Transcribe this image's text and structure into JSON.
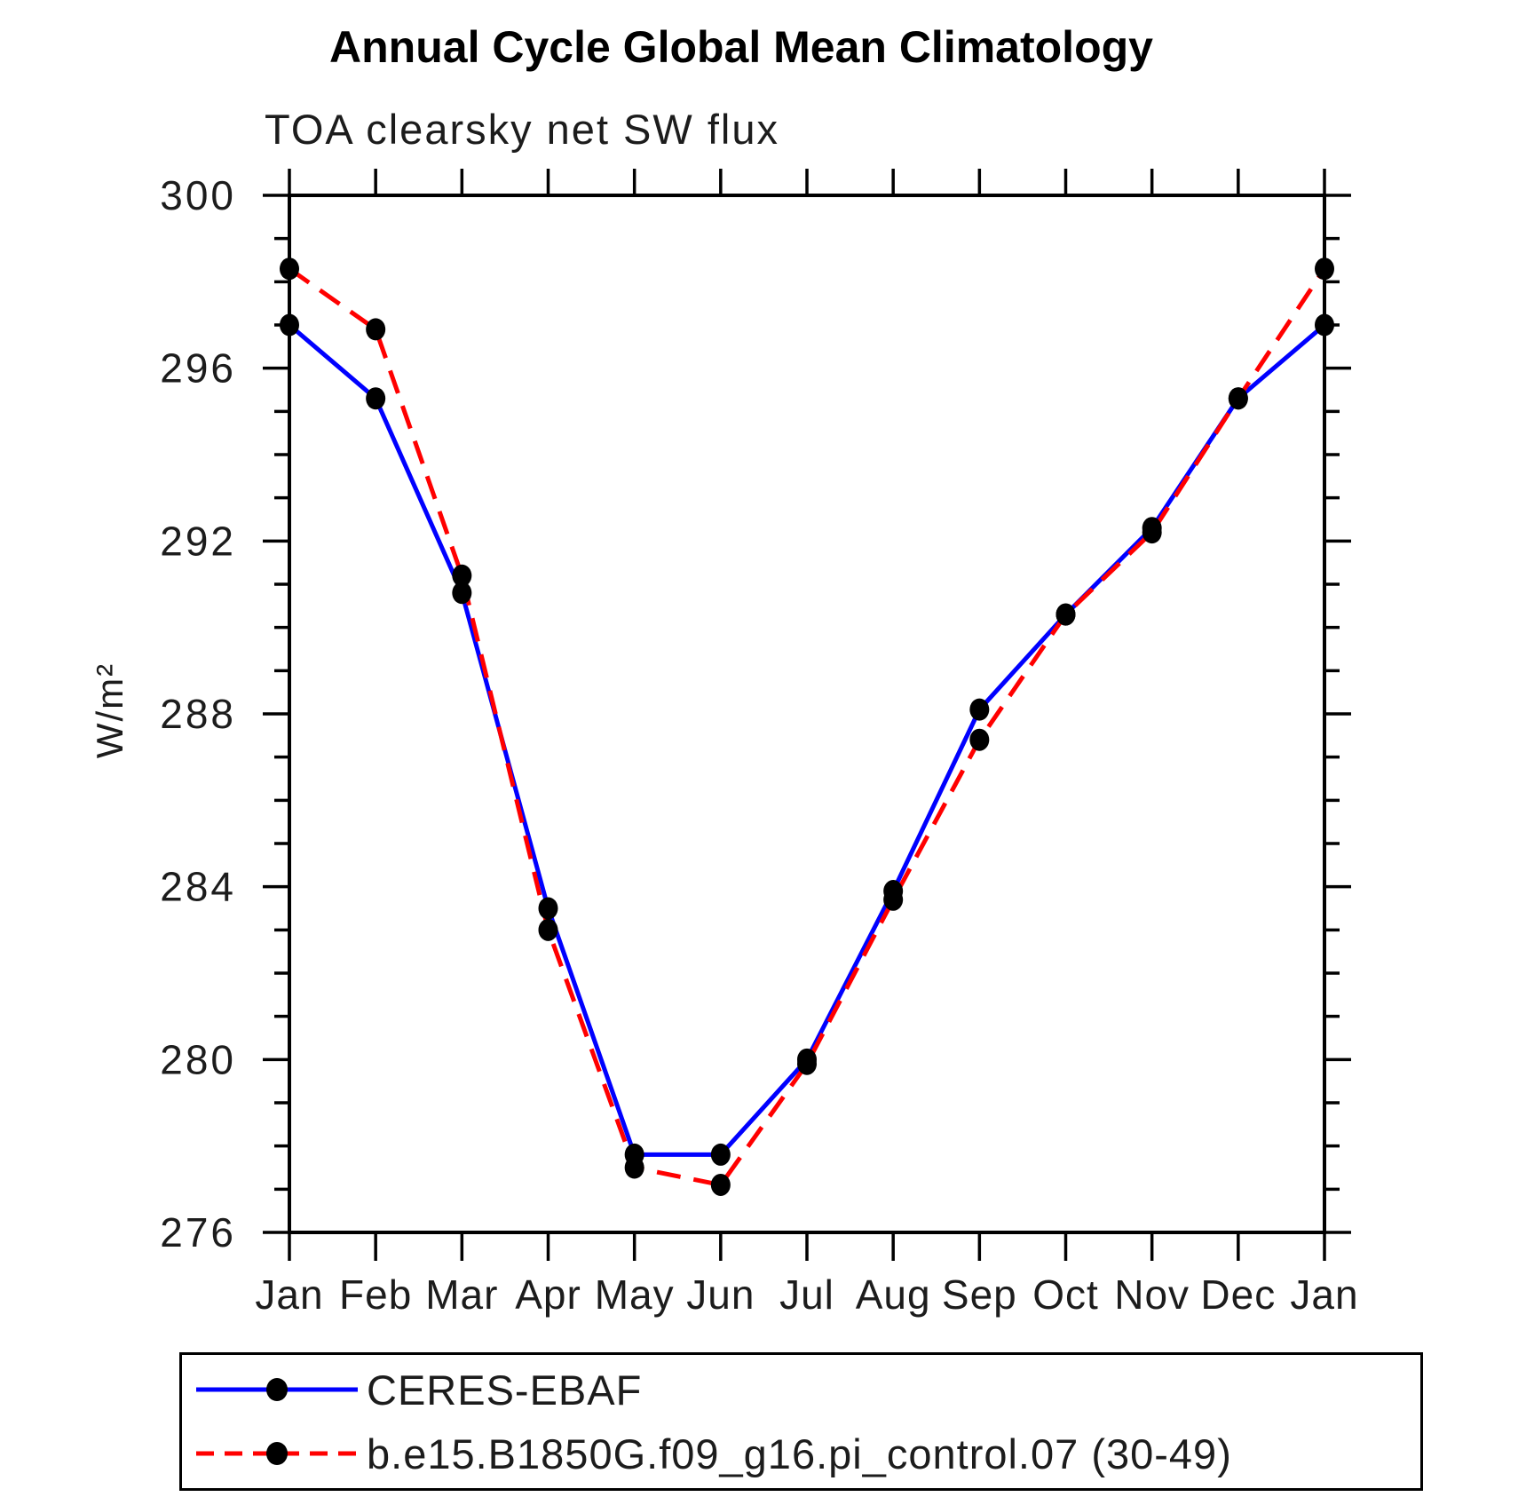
{
  "title": "Annual Cycle Global Mean Climatology",
  "subtitle": "TOA clearsky net SW flux",
  "ylabel": "W/m²",
  "legend": {
    "position": "bottom",
    "marker_color": "#000000",
    "entries": [
      {
        "label": "CERES-EBAF",
        "color": "#0000ff",
        "style": "solid"
      },
      {
        "label": "b.e15.B1850G.f09_g16.pi_control.07 (30-49)",
        "color": "#ff0000",
        "style": "dashed",
        "dash": "20 12"
      }
    ]
  },
  "chart_data": {
    "type": "line",
    "title": "Annual Cycle Global Mean Climatology",
    "subtitle": "TOA clearsky net SW flux",
    "xlabel": "",
    "ylabel": "W/m²",
    "x_categories": [
      "Jan",
      "Feb",
      "Mar",
      "Apr",
      "May",
      "Jun",
      "Jul",
      "Aug",
      "Sep",
      "Oct",
      "Nov",
      "Dec",
      "Jan"
    ],
    "ylim": [
      276,
      300
    ],
    "ytick_major": [
      276,
      280,
      284,
      288,
      292,
      296,
      300
    ],
    "ytick_minor_step": 1,
    "grid": false,
    "legend_position": "bottom",
    "marker": "filled-black-dot",
    "series": [
      {
        "name": "CERES-EBAF",
        "color": "#0000ff",
        "line_style": "solid",
        "values": [
          297.0,
          295.3,
          290.8,
          283.5,
          277.8,
          277.8,
          280.0,
          283.9,
          288.1,
          290.3,
          292.3,
          295.3,
          297.0
        ]
      },
      {
        "name": "b.e15.B1850G.f09_g16.pi_control.07 (30-49)",
        "color": "#ff0000",
        "line_style": "dashed",
        "values": [
          298.3,
          296.9,
          291.2,
          283.0,
          277.5,
          277.1,
          279.9,
          283.7,
          287.4,
          290.3,
          292.2,
          295.3,
          298.3
        ]
      }
    ]
  }
}
